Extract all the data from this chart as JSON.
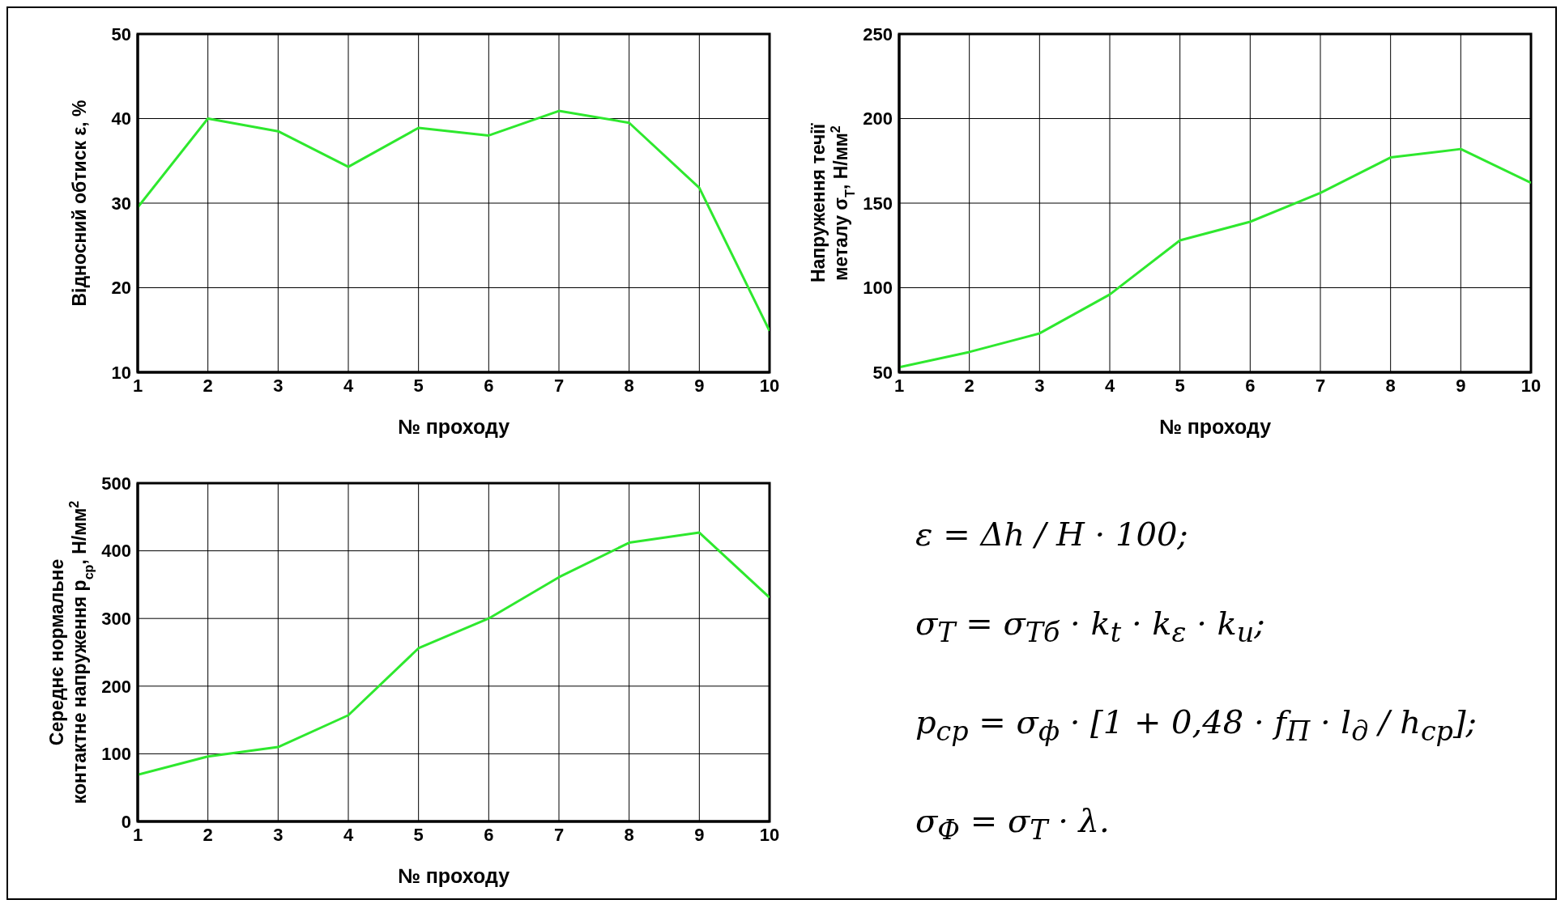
{
  "chart_data": [
    {
      "type": "line",
      "x": [
        1,
        2,
        3,
        4,
        5,
        6,
        7,
        8,
        9,
        10
      ],
      "xlim": [
        1,
        10
      ],
      "xticks": [
        1,
        2,
        3,
        4,
        5,
        6,
        7,
        8,
        9,
        10
      ],
      "ylim": [
        10,
        50
      ],
      "yticks": [
        10,
        20,
        30,
        40,
        50
      ],
      "xlabel": "№ проходу",
      "ylabel": "Відносний обтиск ε, %",
      "grid": true,
      "marker": "none",
      "line_style": "solid",
      "series": [
        {
          "color": "#2ee82e",
          "values": [
            29.5,
            40,
            38.5,
            34.3,
            38.9,
            38,
            40.9,
            39.5,
            31.8,
            14.9
          ]
        }
      ]
    },
    {
      "type": "line",
      "x": [
        1,
        2,
        3,
        4,
        5,
        6,
        7,
        8,
        9,
        10
      ],
      "xlim": [
        1,
        10
      ],
      "xticks": [
        1,
        2,
        3,
        4,
        5,
        6,
        7,
        8,
        9,
        10
      ],
      "ylim": [
        50,
        250
      ],
      "yticks": [
        50,
        100,
        150,
        200,
        250
      ],
      "xlabel": "№ проходу",
      "ylabel": "Напруження течії\nметалу σ$_{T}$, Н/мм$^{2}$",
      "grid": true,
      "marker": "none",
      "line_style": "solid",
      "series": [
        {
          "color": "#2ee82e",
          "values": [
            53,
            62,
            73,
            96,
            128,
            139,
            156,
            177,
            182,
            162
          ]
        }
      ]
    },
    {
      "type": "line",
      "x": [
        1,
        2,
        3,
        4,
        5,
        6,
        7,
        8,
        9,
        10
      ],
      "xlim": [
        1,
        10
      ],
      "xticks": [
        1,
        2,
        3,
        4,
        5,
        6,
        7,
        8,
        9,
        10
      ],
      "ylim": [
        0,
        500
      ],
      "yticks": [
        0,
        100,
        200,
        300,
        400,
        500
      ],
      "xlabel": "№ проходу",
      "ylabel": "Середнє нормальне\nконтактне напруження р$_{ср}$, Н/мм$^{2}$",
      "grid": true,
      "marker": "none",
      "line_style": "solid",
      "series": [
        {
          "color": "#2ee82e",
          "values": [
            69,
            96,
            110,
            157,
            256,
            300,
            361,
            412,
            427,
            331
          ]
        }
      ]
    },
    {
      "type": "other",
      "annotations": [
        "ε = Δh / H · 100;",
        "σ$_{T}$ = σ$_{Tб}$ · k$_{t}$ · k$_{ε}$ · k$_{u}$;",
        "p$_{cp}$ = σ$_{ф}$ · [1 + 0,48 · f$_{П}$ · l$_{д}$ / h$_{cp}$];",
        "σ$_{Ф}$ = σ$_{T}$ · λ."
      ]
    }
  ]
}
